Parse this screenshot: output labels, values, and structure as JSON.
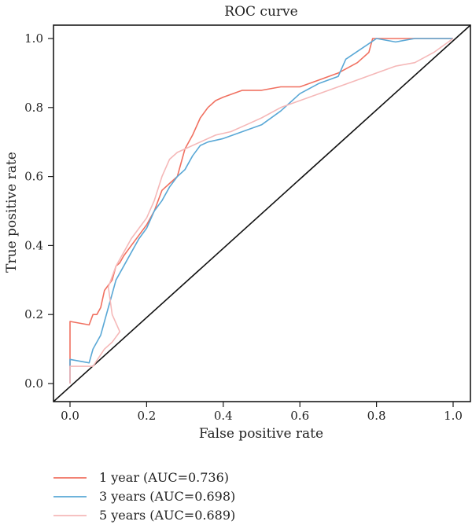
{
  "chart_data": {
    "type": "line",
    "title": "ROC curve",
    "xlabel": "False positive rate",
    "ylabel": "True positive rate",
    "xlim": [
      0,
      1
    ],
    "ylim": [
      0,
      1
    ],
    "x_ticks": [
      "0.0",
      "0.2",
      "0.4",
      "0.6",
      "0.8",
      "1.0"
    ],
    "y_ticks": [
      "0.0",
      "0.2",
      "0.4",
      "0.6",
      "0.8",
      "1.0"
    ],
    "grid": false,
    "legend_position": "bottom-left, below plot",
    "diagonal_reference": true,
    "series": [
      {
        "name": "1 year (AUC=0.736)",
        "color": "#f07060",
        "points": [
          [
            0.0,
            0.0
          ],
          [
            0.0,
            0.18
          ],
          [
            0.05,
            0.17
          ],
          [
            0.06,
            0.2
          ],
          [
            0.07,
            0.2
          ],
          [
            0.08,
            0.22
          ],
          [
            0.09,
            0.27
          ],
          [
            0.11,
            0.3
          ],
          [
            0.12,
            0.34
          ],
          [
            0.13,
            0.35
          ],
          [
            0.14,
            0.37
          ],
          [
            0.16,
            0.4
          ],
          [
            0.18,
            0.43
          ],
          [
            0.2,
            0.46
          ],
          [
            0.22,
            0.5
          ],
          [
            0.24,
            0.56
          ],
          [
            0.26,
            0.58
          ],
          [
            0.28,
            0.6
          ],
          [
            0.3,
            0.68
          ],
          [
            0.32,
            0.72
          ],
          [
            0.34,
            0.77
          ],
          [
            0.36,
            0.8
          ],
          [
            0.38,
            0.82
          ],
          [
            0.4,
            0.83
          ],
          [
            0.45,
            0.85
          ],
          [
            0.5,
            0.85
          ],
          [
            0.55,
            0.86
          ],
          [
            0.6,
            0.86
          ],
          [
            0.65,
            0.88
          ],
          [
            0.7,
            0.9
          ],
          [
            0.75,
            0.93
          ],
          [
            0.78,
            0.96
          ],
          [
            0.79,
            1.0
          ],
          [
            0.85,
            1.0
          ],
          [
            1.0,
            1.0
          ]
        ]
      },
      {
        "name": "3 years (AUC=0.698)",
        "color": "#5aa8d6",
        "points": [
          [
            0.0,
            0.0
          ],
          [
            0.0,
            0.07
          ],
          [
            0.05,
            0.06
          ],
          [
            0.06,
            0.1
          ],
          [
            0.08,
            0.14
          ],
          [
            0.09,
            0.18
          ],
          [
            0.1,
            0.22
          ],
          [
            0.11,
            0.26
          ],
          [
            0.12,
            0.3
          ],
          [
            0.14,
            0.34
          ],
          [
            0.16,
            0.38
          ],
          [
            0.18,
            0.42
          ],
          [
            0.2,
            0.45
          ],
          [
            0.22,
            0.5
          ],
          [
            0.24,
            0.53
          ],
          [
            0.26,
            0.57
          ],
          [
            0.28,
            0.6
          ],
          [
            0.3,
            0.62
          ],
          [
            0.32,
            0.66
          ],
          [
            0.34,
            0.69
          ],
          [
            0.36,
            0.7
          ],
          [
            0.4,
            0.71
          ],
          [
            0.45,
            0.73
          ],
          [
            0.5,
            0.75
          ],
          [
            0.55,
            0.79
          ],
          [
            0.6,
            0.84
          ],
          [
            0.65,
            0.87
          ],
          [
            0.7,
            0.89
          ],
          [
            0.72,
            0.94
          ],
          [
            0.76,
            0.97
          ],
          [
            0.8,
            1.0
          ],
          [
            0.85,
            0.99
          ],
          [
            0.9,
            1.0
          ],
          [
            1.0,
            1.0
          ]
        ]
      },
      {
        "name": "5 years (AUC=0.689)",
        "color": "#f5b8b8",
        "points": [
          [
            0.0,
            0.0
          ],
          [
            0.0,
            0.05
          ],
          [
            0.06,
            0.05
          ],
          [
            0.09,
            0.1
          ],
          [
            0.11,
            0.12
          ],
          [
            0.13,
            0.15
          ],
          [
            0.11,
            0.2
          ],
          [
            0.1,
            0.28
          ],
          [
            0.12,
            0.34
          ],
          [
            0.14,
            0.38
          ],
          [
            0.16,
            0.42
          ],
          [
            0.18,
            0.45
          ],
          [
            0.2,
            0.48
          ],
          [
            0.22,
            0.53
          ],
          [
            0.24,
            0.6
          ],
          [
            0.26,
            0.65
          ],
          [
            0.28,
            0.67
          ],
          [
            0.3,
            0.68
          ],
          [
            0.34,
            0.7
          ],
          [
            0.38,
            0.72
          ],
          [
            0.42,
            0.73
          ],
          [
            0.46,
            0.75
          ],
          [
            0.5,
            0.77
          ],
          [
            0.55,
            0.8
          ],
          [
            0.6,
            0.82
          ],
          [
            0.65,
            0.84
          ],
          [
            0.7,
            0.86
          ],
          [
            0.75,
            0.88
          ],
          [
            0.8,
            0.9
          ],
          [
            0.85,
            0.92
          ],
          [
            0.9,
            0.93
          ],
          [
            0.95,
            0.96
          ],
          [
            1.0,
            1.0
          ]
        ]
      }
    ]
  }
}
